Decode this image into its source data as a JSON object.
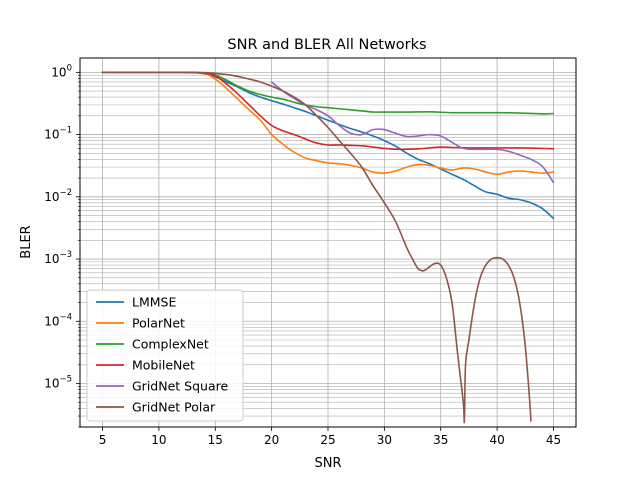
{
  "chart_data": {
    "type": "line",
    "title": "SNR and BLER All Networks",
    "xlabel": "SNR",
    "ylabel": "BLER",
    "yscale": "log",
    "xlim": [
      3,
      47
    ],
    "ylim": [
      2e-06,
      1.7
    ],
    "grid": true,
    "legend_position": "lower-left",
    "x_ticks": [
      5,
      10,
      15,
      20,
      25,
      30,
      35,
      40,
      45
    ],
    "y_ticks": [
      {
        "value": 1,
        "base": "10",
        "exp": "0"
      },
      {
        "value": 0.1,
        "base": "10",
        "exp": "−1"
      },
      {
        "value": 0.01,
        "base": "10",
        "exp": "−2"
      },
      {
        "value": 0.001,
        "base": "10",
        "exp": "−3"
      },
      {
        "value": 0.0001,
        "base": "10",
        "exp": "−4"
      },
      {
        "value": 1e-05,
        "base": "10",
        "exp": "−5"
      }
    ],
    "series": [
      {
        "name": "LMMSE",
        "color": "#1f77b4",
        "points": [
          [
            5,
            1
          ],
          [
            8,
            1
          ],
          [
            12,
            1
          ],
          [
            14,
            0.97
          ],
          [
            15,
            0.85
          ],
          [
            16,
            0.7
          ],
          [
            17,
            0.58
          ],
          [
            18,
            0.47
          ],
          [
            19,
            0.4
          ],
          [
            20,
            0.35
          ],
          [
            21,
            0.31
          ],
          [
            22,
            0.27
          ],
          [
            23,
            0.235
          ],
          [
            24,
            0.2
          ],
          [
            25,
            0.17
          ],
          [
            26,
            0.145
          ],
          [
            27,
            0.125
          ],
          [
            28,
            0.11
          ],
          [
            29,
            0.095
          ],
          [
            30,
            0.08
          ],
          [
            31,
            0.065
          ],
          [
            32,
            0.05
          ],
          [
            33,
            0.04
          ],
          [
            34,
            0.034
          ],
          [
            35,
            0.028
          ],
          [
            36,
            0.023
          ],
          [
            37,
            0.019
          ],
          [
            38,
            0.015
          ],
          [
            39,
            0.012
          ],
          [
            40,
            0.011
          ],
          [
            41,
            0.0095
          ],
          [
            42,
            0.009
          ],
          [
            43,
            0.008
          ],
          [
            44,
            0.0065
          ],
          [
            45,
            0.0045
          ]
        ]
      },
      {
        "name": "PolarNet",
        "color": "#ff7f0e",
        "points": [
          [
            5,
            1
          ],
          [
            8,
            1
          ],
          [
            12,
            1
          ],
          [
            14,
            0.95
          ],
          [
            15,
            0.78
          ],
          [
            16,
            0.55
          ],
          [
            17,
            0.37
          ],
          [
            18,
            0.25
          ],
          [
            19,
            0.17
          ],
          [
            20,
            0.1
          ],
          [
            21,
            0.07
          ],
          [
            22,
            0.052
          ],
          [
            23,
            0.042
          ],
          [
            24,
            0.038
          ],
          [
            25,
            0.035
          ],
          [
            26,
            0.034
          ],
          [
            27,
            0.032
          ],
          [
            28,
            0.029
          ],
          [
            29,
            0.025
          ],
          [
            30,
            0.024
          ],
          [
            31,
            0.026
          ],
          [
            32,
            0.03
          ],
          [
            33,
            0.033
          ],
          [
            34,
            0.032
          ],
          [
            35,
            0.029
          ],
          [
            36,
            0.027
          ],
          [
            37,
            0.029
          ],
          [
            38,
            0.028
          ],
          [
            39,
            0.025
          ],
          [
            40,
            0.023
          ],
          [
            41,
            0.025
          ],
          [
            42,
            0.026
          ],
          [
            43,
            0.025
          ],
          [
            44,
            0.024
          ],
          [
            45,
            0.025
          ]
        ]
      },
      {
        "name": "ComplexNet",
        "color": "#2ca02c",
        "points": [
          [
            5,
            1
          ],
          [
            8,
            1
          ],
          [
            12,
            1
          ],
          [
            14,
            0.97
          ],
          [
            15,
            0.9
          ],
          [
            16,
            0.75
          ],
          [
            17,
            0.6
          ],
          [
            18,
            0.5
          ],
          [
            19,
            0.44
          ],
          [
            20,
            0.4
          ],
          [
            21,
            0.37
          ],
          [
            22,
            0.33
          ],
          [
            23,
            0.3
          ],
          [
            24,
            0.28
          ],
          [
            25,
            0.27
          ],
          [
            26,
            0.26
          ],
          [
            27,
            0.25
          ],
          [
            28,
            0.24
          ],
          [
            29,
            0.23
          ],
          [
            30,
            0.23
          ],
          [
            32,
            0.23
          ],
          [
            34,
            0.232
          ],
          [
            36,
            0.225
          ],
          [
            38,
            0.225
          ],
          [
            40,
            0.225
          ],
          [
            42,
            0.222
          ],
          [
            44,
            0.215
          ],
          [
            45,
            0.218
          ]
        ]
      },
      {
        "name": "MobileNet",
        "color": "#d62728",
        "points": [
          [
            5,
            1
          ],
          [
            8,
            1
          ],
          [
            12,
            1
          ],
          [
            14,
            0.97
          ],
          [
            15,
            0.88
          ],
          [
            16,
            0.65
          ],
          [
            17,
            0.45
          ],
          [
            18,
            0.3
          ],
          [
            19,
            0.2
          ],
          [
            20,
            0.14
          ],
          [
            21,
            0.115
          ],
          [
            22,
            0.1
          ],
          [
            23,
            0.085
          ],
          [
            24,
            0.073
          ],
          [
            25,
            0.068
          ],
          [
            26,
            0.068
          ],
          [
            27,
            0.067
          ],
          [
            28,
            0.066
          ],
          [
            29,
            0.063
          ],
          [
            30,
            0.06
          ],
          [
            31,
            0.058
          ],
          [
            32,
            0.058
          ],
          [
            33,
            0.059
          ],
          [
            34,
            0.061
          ],
          [
            35,
            0.063
          ],
          [
            36,
            0.062
          ],
          [
            38,
            0.061
          ],
          [
            40,
            0.061
          ],
          [
            42,
            0.061
          ],
          [
            44,
            0.06
          ],
          [
            45,
            0.059
          ]
        ]
      },
      {
        "name": "GridNet Square",
        "color": "#9467bd",
        "points": [
          [
            20,
            0.7
          ],
          [
            21,
            0.5
          ],
          [
            22,
            0.38
          ],
          [
            23,
            0.3
          ],
          [
            24,
            0.25
          ],
          [
            25,
            0.2
          ],
          [
            26,
            0.14
          ],
          [
            27,
            0.105
          ],
          [
            28,
            0.1
          ],
          [
            29,
            0.12
          ],
          [
            30,
            0.12
          ],
          [
            31,
            0.105
          ],
          [
            32,
            0.093
          ],
          [
            33,
            0.095
          ],
          [
            34,
            0.1
          ],
          [
            35,
            0.095
          ],
          [
            36,
            0.075
          ],
          [
            37,
            0.06
          ],
          [
            38,
            0.058
          ],
          [
            39,
            0.058
          ],
          [
            40,
            0.058
          ],
          [
            41,
            0.054
          ],
          [
            42,
            0.047
          ],
          [
            43,
            0.04
          ],
          [
            44,
            0.031
          ],
          [
            45,
            0.017
          ]
        ]
      },
      {
        "name": "GridNet Polar",
        "color": "#8c564b",
        "points": [
          [
            5,
            1
          ],
          [
            8,
            1
          ],
          [
            12,
            1
          ],
          [
            14,
            0.99
          ],
          [
            15,
            0.96
          ],
          [
            16,
            0.92
          ],
          [
            17,
            0.86
          ],
          [
            18,
            0.78
          ],
          [
            19,
            0.7
          ],
          [
            20,
            0.6
          ],
          [
            21,
            0.5
          ],
          [
            22,
            0.4
          ],
          [
            23,
            0.3
          ],
          [
            24,
            0.2
          ],
          [
            25,
            0.13
          ],
          [
            26,
            0.08
          ],
          [
            27,
            0.05
          ],
          [
            28,
            0.03
          ],
          [
            29,
            0.015
          ],
          [
            30,
            0.008
          ],
          [
            31,
            0.004
          ],
          [
            32,
            0.0015
          ],
          [
            32.5,
            0.001
          ],
          [
            33,
            0.0007
          ],
          [
            33.5,
            0.00065
          ],
          [
            34,
            0.00075
          ],
          [
            34.5,
            0.00085
          ],
          [
            35,
            0.0008
          ],
          [
            35.5,
            0.0005
          ],
          [
            36,
            0.0002
          ],
          [
            36.5,
            3e-05
          ],
          [
            37,
            5e-06
          ],
          [
            37.1,
            2.5e-06
          ],
          [
            37.2,
            2e-05
          ],
          [
            37.5,
            5e-05
          ],
          [
            38,
            0.0002
          ],
          [
            38.5,
            0.0005
          ],
          [
            39,
            0.0008
          ],
          [
            39.5,
            0.001
          ],
          [
            40,
            0.00105
          ],
          [
            40.5,
            0.001
          ],
          [
            41,
            0.0008
          ],
          [
            41.5,
            0.0005
          ],
          [
            42,
            0.0002
          ],
          [
            42.5,
            4e-05
          ],
          [
            42.9,
            5e-06
          ],
          [
            43,
            2.5e-06
          ]
        ]
      }
    ]
  }
}
